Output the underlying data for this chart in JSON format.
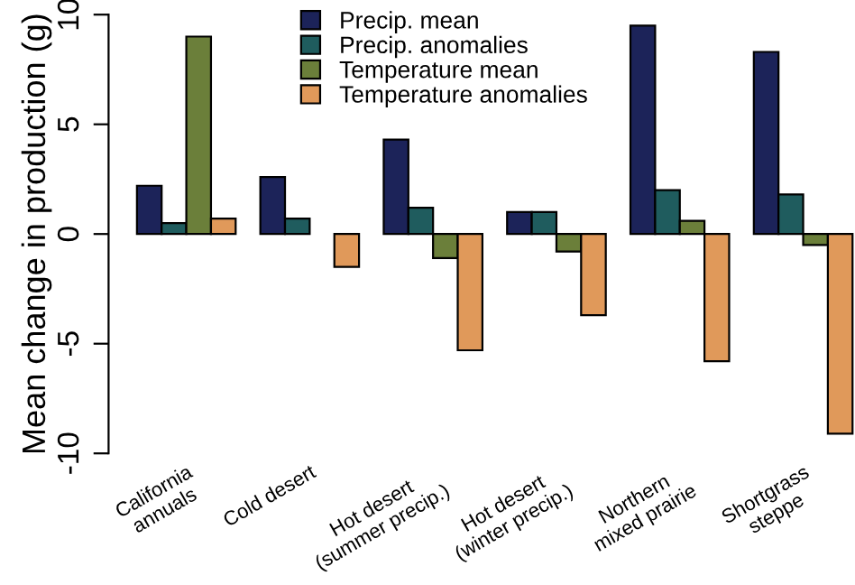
{
  "chart_data": {
    "type": "bar",
    "ylabel": "Mean change in production (g)",
    "categories": [
      "California\nannuals",
      "Cold desert",
      "Hot desert\n(summer precip.)",
      "Hot desert\n(winter precip.)",
      "Northern\nmixed prairie",
      "Shortgrass\nsteppe"
    ],
    "series": [
      {
        "name": "Precip. mean",
        "color": "#1c2359",
        "values": [
          2.2,
          2.6,
          4.3,
          1.0,
          9.5,
          8.3
        ]
      },
      {
        "name": "Precip. anomalies",
        "color": "#1f5c5e",
        "values": [
          0.5,
          0.7,
          1.2,
          1.0,
          2.0,
          1.8
        ]
      },
      {
        "name": "Temperature mean",
        "color": "#6b7f3a",
        "values": [
          9.0,
          null,
          -1.1,
          -0.8,
          0.6,
          -0.5
        ]
      },
      {
        "name": "Temperature anomalies",
        "color": "#e0995a",
        "values": [
          0.7,
          -1.5,
          -5.3,
          -3.7,
          -5.8,
          -9.1
        ]
      }
    ],
    "ylim": [
      -10,
      10
    ],
    "yticks": [
      -10,
      -5,
      0,
      5,
      10
    ],
    "legend": "top",
    "grid": false
  }
}
